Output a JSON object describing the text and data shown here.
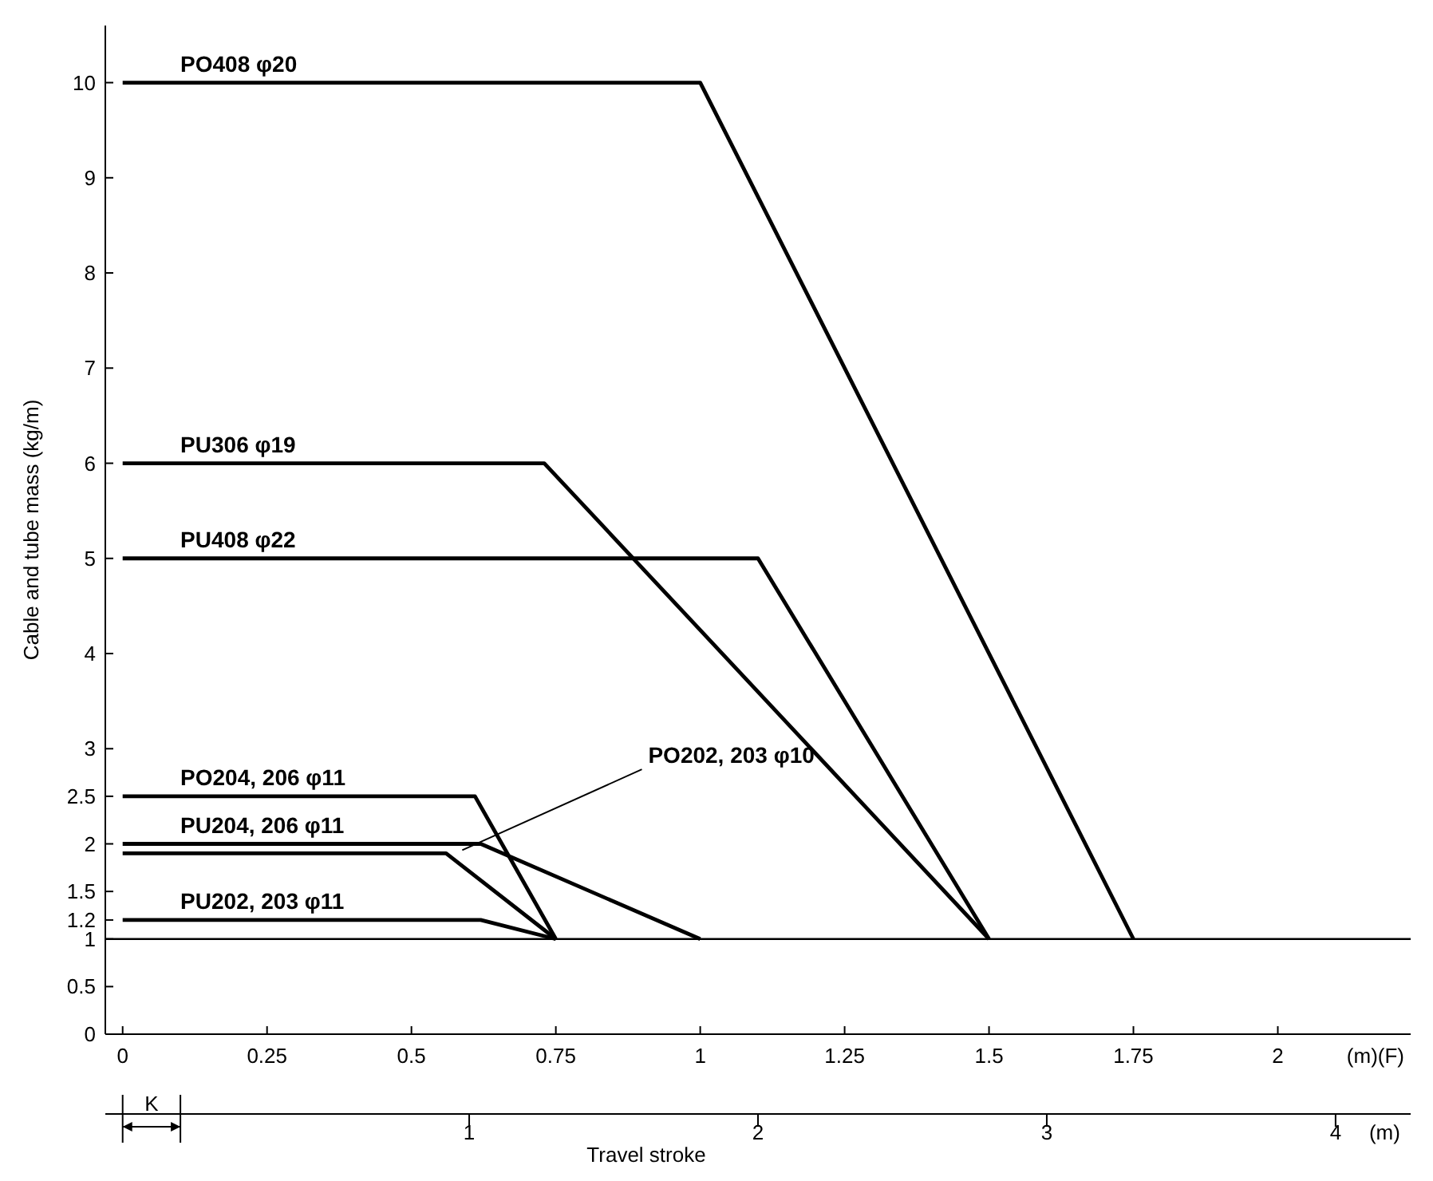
{
  "chart_data": {
    "type": "line",
    "ylabel": "Cable and tube mass (kg/m)",
    "xlabel": "(m)(F)",
    "x2label": "Travel stroke",
    "xlim": [
      -0.03,
      2.23
    ],
    "xticks": [
      0,
      0.25,
      0.5,
      0.75,
      1,
      1.25,
      1.5,
      1.75,
      2
    ],
    "ylim": [
      0,
      10.6
    ],
    "yticks": [
      0,
      0.5,
      1,
      1.2,
      1.5,
      2,
      2.5,
      3,
      4,
      5,
      6,
      7,
      8,
      9,
      10
    ],
    "x2lim": [
      -0.26,
      4.26
    ],
    "x2ticks": [
      1,
      2,
      3,
      4,
      {
        "value": 4.17,
        "label": "(m)"
      }
    ],
    "grid": false,
    "marker": "none",
    "line_style": "solid",
    "ref_lines": [
      {
        "axis": "y",
        "value": 1,
        "color": "#000000"
      }
    ],
    "annotations": [
      "K"
    ],
    "series": [
      {
        "name": "PO408 φ20",
        "color": "#000000",
        "x": [
          0,
          1,
          1.75
        ],
        "values": [
          10,
          10,
          1
        ]
      },
      {
        "name": "PU306 φ19",
        "color": "#000000",
        "x": [
          0,
          0.73,
          1.5
        ],
        "values": [
          6,
          6,
          1
        ]
      },
      {
        "name": "PU408 φ22",
        "color": "#000000",
        "x": [
          0,
          1.1,
          1.5
        ],
        "values": [
          5,
          5,
          1
        ]
      },
      {
        "name": "PO204, 206 φ11",
        "color": "#000000",
        "x": [
          0,
          0.61,
          0.75
        ],
        "values": [
          2.5,
          2.5,
          1
        ]
      },
      {
        "name": "PU204, 206 φ11",
        "color": "#000000",
        "x": [
          0,
          0.62,
          1
        ],
        "values": [
          2,
          2,
          1
        ]
      },
      {
        "name": "PO202, 203 φ10",
        "color": "#000000",
        "x": [
          0,
          0.56,
          0.75
        ],
        "values": [
          1.9,
          1.9,
          1
        ]
      },
      {
        "name": "PU202, 203 φ11",
        "color": "#000000",
        "x": [
          0,
          0.62,
          0.75
        ],
        "values": [
          1.2,
          1.2,
          1
        ]
      }
    ]
  }
}
